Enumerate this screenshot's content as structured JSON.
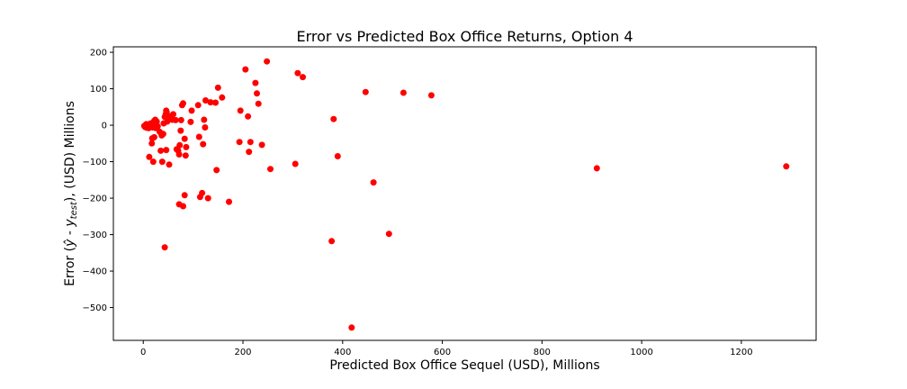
{
  "chart_data": {
    "type": "scatter",
    "title": "Error vs Predicted Box Office Returns, Option 4",
    "xlabel": "Predicted Box Office Sequel (USD), Millions",
    "ylabel_parts": {
      "prefix": "Error (",
      "yhat": "ŷ",
      "mid": " - ",
      "y": "y",
      "sub": "test",
      "suffix": "), (USD) Millions"
    },
    "xlim": [
      -60,
      1350
    ],
    "ylim": [
      -590,
      215
    ],
    "xticks": [
      0,
      200,
      400,
      600,
      800,
      1000,
      1200
    ],
    "yticks": [
      200,
      100,
      0,
      -100,
      -200,
      -300,
      -400,
      -500
    ],
    "xtick_labels": [
      "0",
      "200",
      "400",
      "600",
      "800",
      "1000",
      "1200"
    ],
    "ytick_labels": [
      "200",
      "100",
      "0",
      "−100",
      "−200",
      "−300",
      "−400",
      "−500"
    ],
    "marker_color": "#ff0000",
    "grid": false,
    "points": [
      [
        2,
        -2
      ],
      [
        4,
        -5
      ],
      [
        5,
        0
      ],
      [
        6,
        3
      ],
      [
        7,
        -7
      ],
      [
        8,
        -3
      ],
      [
        10,
        2
      ],
      [
        11,
        -8
      ],
      [
        12,
        1
      ],
      [
        14,
        -4
      ],
      [
        15,
        5
      ],
      [
        16,
        -2
      ],
      [
        18,
        3
      ],
      [
        19,
        -6
      ],
      [
        20,
        -1
      ],
      [
        22,
        12
      ],
      [
        24,
        15
      ],
      [
        25,
        -8
      ],
      [
        27,
        10
      ],
      [
        29,
        -3
      ],
      [
        12,
        -87
      ],
      [
        17,
        -50
      ],
      [
        18,
        -36
      ],
      [
        20,
        -100
      ],
      [
        22,
        -33
      ],
      [
        33,
        -18
      ],
      [
        35,
        -70
      ],
      [
        37,
        -28
      ],
      [
        38,
        -100
      ],
      [
        40,
        -24
      ],
      [
        41,
        5
      ],
      [
        43,
        23
      ],
      [
        45,
        30
      ],
      [
        46,
        40
      ],
      [
        47,
        35
      ],
      [
        48,
        10
      ],
      [
        50,
        25
      ],
      [
        52,
        18
      ],
      [
        55,
        20
      ],
      [
        58,
        15
      ],
      [
        60,
        30
      ],
      [
        46,
        -68
      ],
      [
        52,
        -108
      ],
      [
        43,
        -335
      ],
      [
        65,
        14
      ],
      [
        67,
        -66
      ],
      [
        70,
        -70
      ],
      [
        72,
        -80
      ],
      [
        73,
        -55
      ],
      [
        75,
        -15
      ],
      [
        76,
        14
      ],
      [
        78,
        55
      ],
      [
        80,
        60
      ],
      [
        83,
        -37
      ],
      [
        85,
        -83
      ],
      [
        86,
        -60
      ],
      [
        95,
        9
      ],
      [
        97,
        40
      ],
      [
        72,
        -217
      ],
      [
        80,
        -222
      ],
      [
        83,
        -192
      ],
      [
        110,
        55
      ],
      [
        112,
        -32
      ],
      [
        114,
        -197
      ],
      [
        118,
        -186
      ],
      [
        120,
        -52
      ],
      [
        122,
        15
      ],
      [
        124,
        -6
      ],
      [
        125,
        68
      ],
      [
        135,
        63
      ],
      [
        130,
        -200
      ],
      [
        145,
        62
      ],
      [
        147,
        -123
      ],
      [
        150,
        103
      ],
      [
        158,
        76
      ],
      [
        172,
        -210
      ],
      [
        193,
        -46
      ],
      [
        195,
        40
      ],
      [
        205,
        153
      ],
      [
        210,
        24
      ],
      [
        212,
        -73
      ],
      [
        215,
        -46
      ],
      [
        225,
        116
      ],
      [
        228,
        87
      ],
      [
        231,
        59
      ],
      [
        238,
        -54
      ],
      [
        248,
        175
      ],
      [
        255,
        -120
      ],
      [
        305,
        -106
      ],
      [
        310,
        143
      ],
      [
        320,
        132
      ],
      [
        378,
        -318
      ],
      [
        382,
        17
      ],
      [
        390,
        -85
      ],
      [
        418,
        -555
      ],
      [
        446,
        91
      ],
      [
        462,
        -157
      ],
      [
        493,
        -298
      ],
      [
        522,
        89
      ],
      [
        578,
        82
      ],
      [
        910,
        -118
      ],
      [
        1290,
        -113
      ]
    ]
  }
}
